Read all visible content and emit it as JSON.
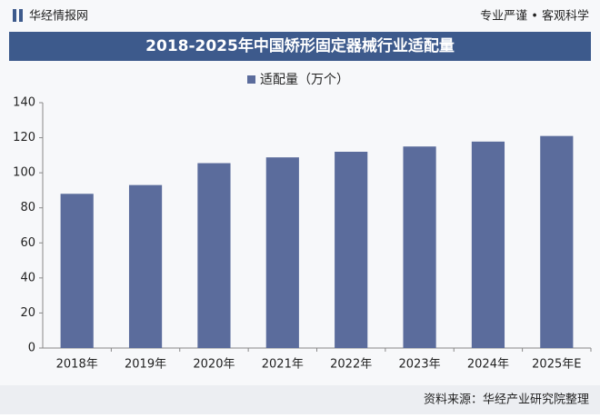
{
  "header": {
    "brand": "华经情报网",
    "slogan": "专业严谨 • 客观科学"
  },
  "chart_data": {
    "type": "bar",
    "title": "2018-2025年中国矫形固定器械行业适配量",
    "categories": [
      "2018年",
      "2019年",
      "2020年",
      "2021年",
      "2022年",
      "2023年",
      "2024年",
      "2025年E"
    ],
    "series": [
      {
        "name": "适配量（万个）",
        "color": "#5b6c9c",
        "values": [
          88,
          93,
          105.5,
          108.8,
          112,
          115,
          117.8,
          121
        ]
      }
    ],
    "ylim": [
      0,
      140
    ],
    "yticks": [
      0,
      20,
      40,
      60,
      80,
      100,
      120,
      140
    ],
    "grid": false,
    "legend": "top"
  },
  "source": "资料来源：华经产业研究院整理"
}
